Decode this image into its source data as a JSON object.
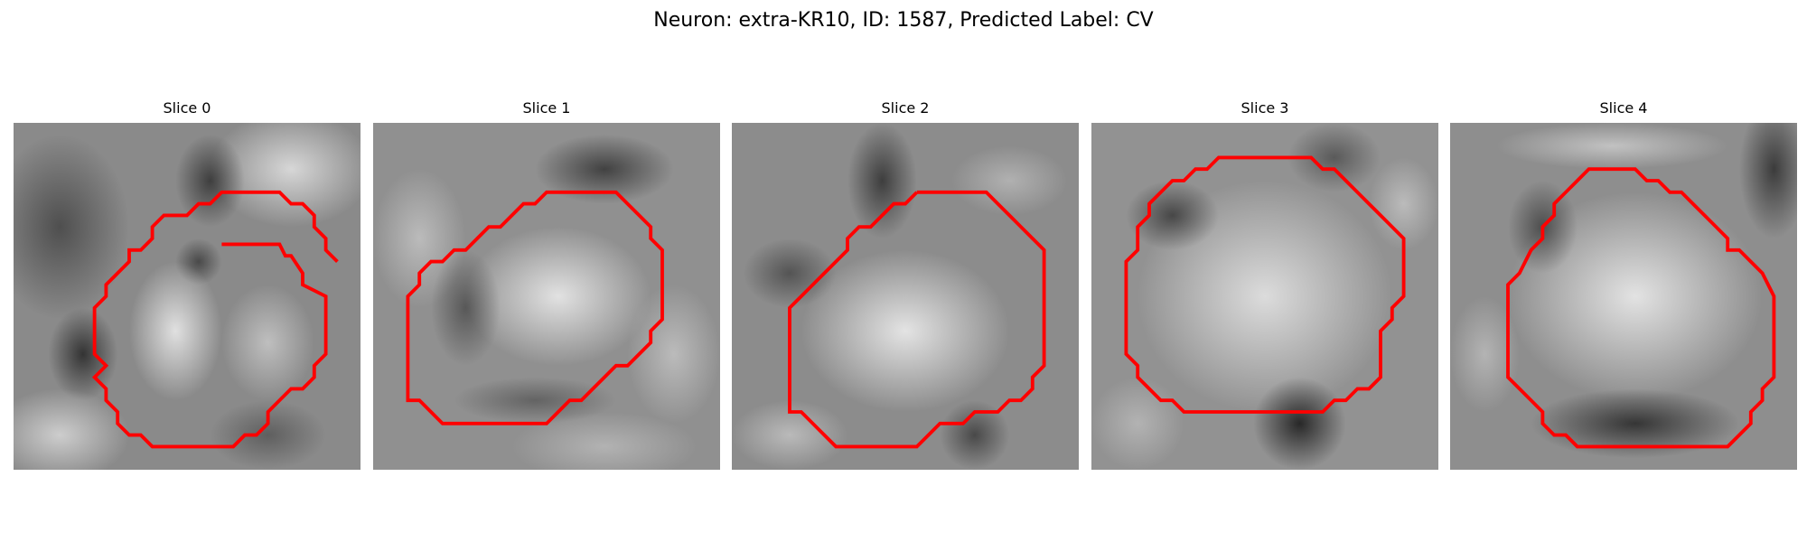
{
  "figure": {
    "title": "Neuron: extra-KR10, ID: 1587, Predicted Label: CV"
  },
  "panels": [
    {
      "title": "Slice 0"
    },
    {
      "title": "Slice 1"
    },
    {
      "title": "Slice 2"
    },
    {
      "title": "Slice 3"
    },
    {
      "title": "Slice 4"
    }
  ],
  "colors": {
    "contour": "#ff0000",
    "colormap": "grayscale"
  }
}
